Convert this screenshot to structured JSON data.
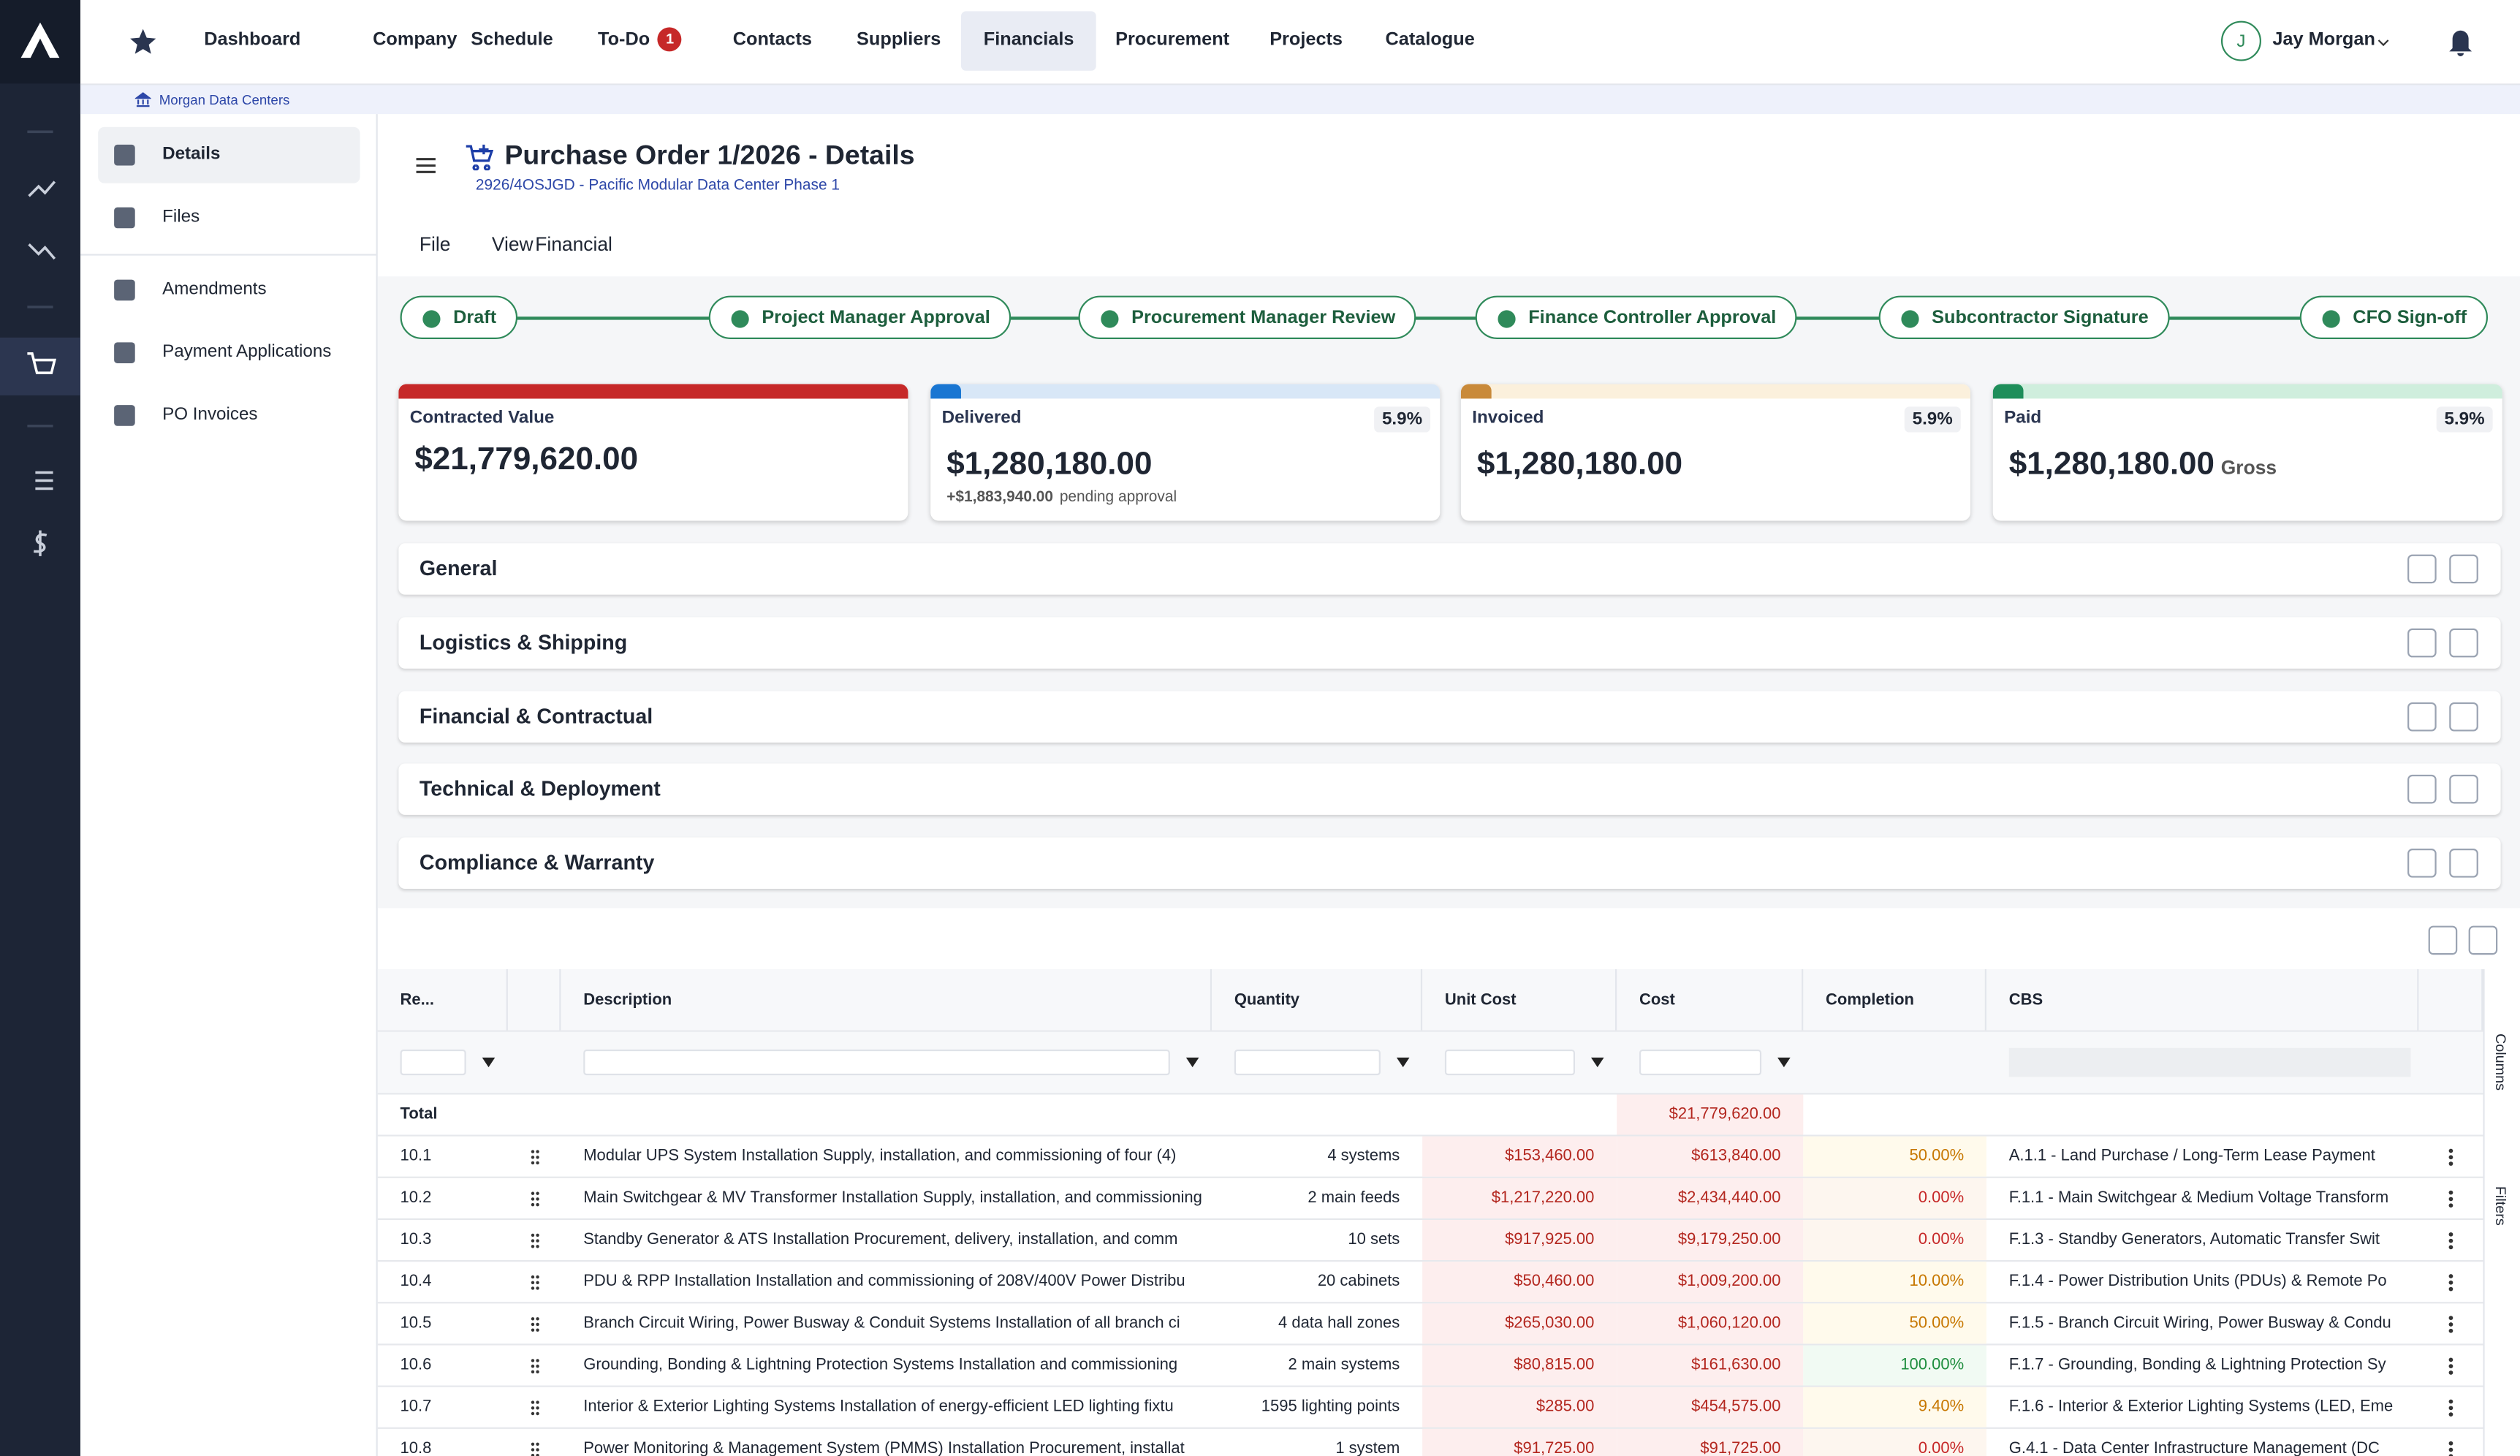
{
  "nav": {
    "items": [
      "Dashboard",
      "Company",
      "Schedule",
      "To-Do",
      "Contacts",
      "Suppliers",
      "Financials",
      "Procurement",
      "Projects",
      "Catalogue"
    ],
    "todo_badge": "1",
    "active": "Financials"
  },
  "user": {
    "initial": "J",
    "name": "Jay Morgan"
  },
  "breadcrumb": "Morgan Data Centers",
  "sidebar": [
    "Details",
    "Files",
    "Amendments",
    "Payment Applications",
    "PO Invoices"
  ],
  "header": {
    "title": "Purchase Order 1/2026 - Details",
    "subtitle": "2926/4OSJGD - Pacific Modular Data Center Phase 1"
  },
  "menu": [
    "File",
    "View",
    "Financial"
  ],
  "steps": [
    "Draft",
    "Project Manager Approval",
    "Procurement Manager Review",
    "Finance Controller Approval",
    "Subcontractor Signature",
    "CFO Sign-off"
  ],
  "cards": [
    {
      "label": "Contracted Value",
      "value": "$21,779,620.00",
      "color": "#c62828",
      "track": "#c62828"
    },
    {
      "label": "Delivered",
      "percent": "5.9%",
      "value": "$1,280,180.00",
      "note_amount": "+$1,883,940.00",
      "note": "pending approval",
      "color": "#1976d2",
      "track": "#d8e7f7"
    },
    {
      "label": "Invoiced",
      "percent": "5.9%",
      "value": "$1,280,180.00",
      "color": "#c98a3a",
      "track": "#fbf0dc"
    },
    {
      "label": "Paid",
      "percent": "5.9%",
      "value": "$1,280,180.00",
      "suffix": "Gross",
      "color": "#1e8e5a",
      "track": "#cfeedd"
    }
  ],
  "sections": [
    "General",
    "Logistics & Shipping",
    "Financial & Contractual",
    "Technical & Deployment",
    "Compliance & Warranty"
  ],
  "table": {
    "columns": [
      "Re...",
      "Description",
      "Quantity",
      "Unit Cost",
      "Cost",
      "Completion",
      "CBS"
    ],
    "total_label": "Total",
    "total_cost": "$21,779,620.00",
    "rows": [
      [
        "10.1",
        "Modular UPS System Installation Supply, installation, and commissioning of four (4)",
        "4 systems",
        "$153,460.00",
        "$613,840.00",
        "50.00%",
        "A.1.1 - Land Purchase / Long-Term Lease Payment"
      ],
      [
        "10.2",
        "Main Switchgear & MV Transformer Installation Supply, installation, and commissioning",
        "2 main feeds",
        "$1,217,220.00",
        "$2,434,440.00",
        "0.00%",
        "F.1.1 - Main Switchgear & Medium Voltage Transform"
      ],
      [
        "10.3",
        "Standby Generator & ATS Installation Procurement, delivery, installation, and comm",
        "10 sets",
        "$917,925.00",
        "$9,179,250.00",
        "0.00%",
        "F.1.3 - Standby Generators, Automatic Transfer Swit"
      ],
      [
        "10.4",
        "PDU & RPP Installation Installation and commissioning of 208V/400V Power Distribu",
        "20 cabinets",
        "$50,460.00",
        "$1,009,200.00",
        "10.00%",
        "F.1.4 - Power Distribution Units (PDUs) & Remote Po"
      ],
      [
        "10.5",
        "Branch Circuit Wiring, Power Busway & Conduit Systems Installation of all branch ci",
        "4 data hall zones",
        "$265,030.00",
        "$1,060,120.00",
        "50.00%",
        "F.1.5 - Branch Circuit Wiring, Power Busway & Condu"
      ],
      [
        "10.6",
        "Grounding, Bonding & Lightning Protection Systems Installation and commissioning",
        "2 main systems",
        "$80,815.00",
        "$161,630.00",
        "100.00%",
        "F.1.7 - Grounding, Bonding & Lightning Protection Sy"
      ],
      [
        "10.7",
        "Interior & Exterior Lighting Systems Installation of energy-efficient LED lighting fixtu",
        "1595 lighting points",
        "$285.00",
        "$454,575.00",
        "9.40%",
        "F.1.6 - Interior & Exterior Lighting Systems (LED, Eme"
      ],
      [
        "10.8",
        "Power Monitoring & Management System (PMMS) Installation Procurement, installat",
        "1 system",
        "$91,725.00",
        "$91,725.00",
        "0.00%",
        "G.4.1 - Data Center Infrastructure Management (DC"
      ]
    ]
  },
  "side_tabs": [
    "Columns",
    "Filters"
  ]
}
